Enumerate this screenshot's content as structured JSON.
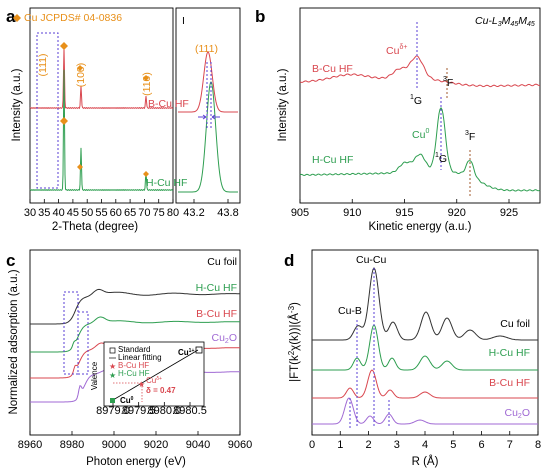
{
  "panel_labels": {
    "a": "a",
    "b": "b",
    "c": "c",
    "d": "d"
  },
  "colors": {
    "red": "#d9474f",
    "green": "#2e9e50",
    "black": "#333333",
    "purple": "#a06ad4",
    "orange": "#e8901a",
    "dash_purple": "#5a3fd4",
    "dash_brown": "#a05a2c"
  },
  "chart_data": [
    {
      "id": "a",
      "type": "line",
      "xlabel": "2-Theta (degree)",
      "ylabel": "Intensity (a.u.)",
      "xticks": [
        "30",
        "35",
        "40",
        "45",
        "50",
        "55",
        "60",
        "65",
        "70",
        "75",
        "80"
      ],
      "xlim": [
        30,
        80
      ],
      "legend": "Cu  JCPDS# 04-0836",
      "reference_peaks": [
        43.3,
        50.4,
        74.1
      ],
      "peak_labels": [
        "(111)",
        "(100)",
        "(110)"
      ],
      "series": [
        {
          "name": "B-Cu HF",
          "color": "#d9474f"
        },
        {
          "name": "H-Cu HF",
          "color": "#2e9e50"
        }
      ],
      "inset": {
        "xticks": [
          "43.2",
          "43.8"
        ],
        "xlim": [
          42.8,
          44.0
        ],
        "roman": "I",
        "peak_label": "(111)",
        "B_peak": 43.25,
        "H_peak": 43.28
      }
    },
    {
      "id": "b",
      "type": "line",
      "title": "Cu-L3M45M45",
      "xlabel": "Kinetic energy (a.u.)",
      "ylabel": "Intensity (a.u.)",
      "xticks": [
        "905",
        "910",
        "915",
        "920",
        "925"
      ],
      "xlim": [
        905,
        928
      ],
      "series": [
        {
          "name": "B-Cu HF",
          "color": "#d9474f"
        },
        {
          "name": "H-Cu HF",
          "color": "#2e9e50"
        }
      ],
      "annotations": [
        {
          "text": "Cu",
          "sup": "δ+",
          "x": 916.2
        },
        {
          "text": "",
          "sup": "1",
          "tail": "G",
          "x": 916.2
        },
        {
          "text": "",
          "sup": "3",
          "tail": "F",
          "x": 918.8
        },
        {
          "text": "Cu",
          "sup": "0",
          "x": 918.4
        },
        {
          "text": "",
          "sup": "1",
          "tail": "G",
          "x": 918.4
        },
        {
          "text": "",
          "sup": "3",
          "tail": "F",
          "x": 921.2
        }
      ]
    },
    {
      "id": "c",
      "type": "line",
      "xlabel": "Photon energy (eV)",
      "ylabel": "Normalized adsorption (a.u.)",
      "xticks": [
        "8960",
        "8980",
        "9000",
        "9020",
        "9040",
        "9060"
      ],
      "xlim": [
        8960,
        9060
      ],
      "series": [
        {
          "name": "Cu foil",
          "color": "#333333"
        },
        {
          "name": "H-Cu HF",
          "color": "#2e9e50"
        },
        {
          "name": "B-Cu HF",
          "color": "#d9474f"
        },
        {
          "name": "Cu2O",
          "color": "#a06ad4"
        }
      ],
      "inset": {
        "ylabel": "Valence",
        "xticks": [
          "8979.0",
          "8979.5",
          "8980.0",
          "8980.5"
        ],
        "legend": [
          "Standard",
          "Linear fitting",
          "B-Cu HF",
          "H-Cu HF"
        ],
        "points": [
          {
            "label": "Cu0",
            "x": 8979.0,
            "y": 0
          },
          {
            "label": "Cu1+",
            "x": 8980.6,
            "y": 1
          },
          {
            "label": "Cuδ+",
            "x": 8979.7,
            "y": 0.47
          }
        ],
        "delta_text": "δ = 0.47"
      }
    },
    {
      "id": "d",
      "type": "line",
      "xlabel": "R (Å)",
      "ylabel": "|FT(k2χ(k))|(Å-3)",
      "xticks": [
        "0",
        "1",
        "2",
        "3",
        "4",
        "5",
        "6",
        "7",
        "8"
      ],
      "xlim": [
        0,
        8
      ],
      "series": [
        {
          "name": "Cu foil",
          "color": "#333333"
        },
        {
          "name": "H-Cu HF",
          "color": "#2e9e50"
        },
        {
          "name": "B-Cu HF",
          "color": "#d9474f"
        },
        {
          "name": "Cu2O",
          "color": "#a06ad4"
        }
      ],
      "annotations": [
        {
          "text": "Cu-Cu",
          "x": 2.2
        },
        {
          "text": "Cu-B",
          "x": 1.6
        }
      ]
    }
  ]
}
